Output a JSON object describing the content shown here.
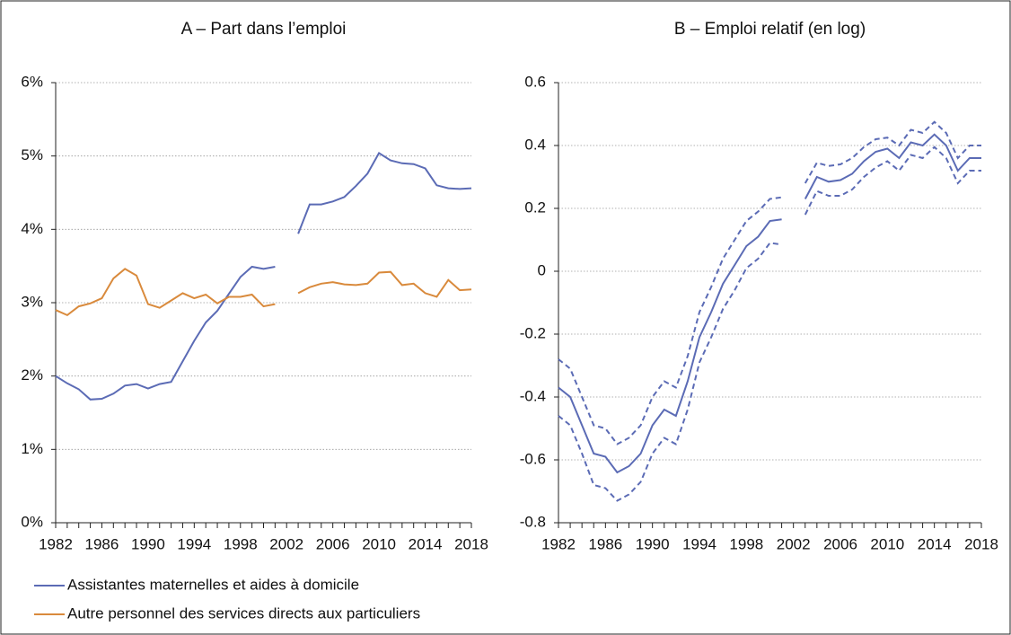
{
  "chart_data": [
    {
      "type": "line",
      "title": "A – Part dans l’emploi",
      "x": [
        1982,
        1983,
        1984,
        1985,
        1986,
        1987,
        1988,
        1989,
        1990,
        1991,
        1992,
        1993,
        1994,
        1995,
        1996,
        1997,
        1998,
        1999,
        2000,
        2001,
        2002,
        2003,
        2004,
        2005,
        2006,
        2007,
        2008,
        2009,
        2010,
        2011,
        2012,
        2013,
        2014,
        2015,
        2016,
        2017,
        2018
      ],
      "xlim": [
        1982,
        2018
      ],
      "xticks": [
        1982,
        1986,
        1990,
        1994,
        1998,
        2002,
        2006,
        2010,
        2014,
        2018
      ],
      "ylim": [
        0,
        6
      ],
      "yticks": [
        {
          "value": 0,
          "label": "0%"
        },
        {
          "value": 1,
          "label": "1%"
        },
        {
          "value": 2,
          "label": "2%"
        },
        {
          "value": 3,
          "label": "3%"
        },
        {
          "value": 4,
          "label": "4%"
        },
        {
          "value": 5,
          "label": "5%"
        },
        {
          "value": 6,
          "label": "6%"
        }
      ],
      "grid": true,
      "legend": "below",
      "series": [
        {
          "name": "Assistantes maternelles et aides à domicile",
          "color": "#5b6bb5",
          "values": [
            2.0,
            1.9,
            1.82,
            1.68,
            1.69,
            1.76,
            1.87,
            1.89,
            1.83,
            1.89,
            1.92,
            2.2,
            2.48,
            2.73,
            2.89,
            3.12,
            3.35,
            3.49,
            3.46,
            3.49,
            null,
            3.94,
            4.34,
            4.34,
            4.38,
            4.44,
            4.59,
            4.76,
            5.04,
            4.94,
            4.9,
            4.89,
            4.83,
            4.6,
            4.56,
            4.55,
            4.56
          ]
        },
        {
          "name": "Autre personnel des services directs aux particuliers",
          "color": "#d98a3c",
          "values": [
            2.9,
            2.83,
            2.95,
            2.99,
            3.06,
            3.33,
            3.46,
            3.37,
            2.98,
            2.93,
            3.03,
            3.13,
            3.06,
            3.11,
            2.99,
            3.08,
            3.08,
            3.11,
            2.95,
            2.98,
            null,
            3.13,
            3.21,
            3.26,
            3.28,
            3.25,
            3.24,
            3.26,
            3.41,
            3.42,
            3.24,
            3.26,
            3.13,
            3.08,
            3.31,
            3.17,
            3.18
          ]
        }
      ]
    },
    {
      "type": "line",
      "title": "B –  Emploi relatif (en log)",
      "x": [
        1982,
        1983,
        1984,
        1985,
        1986,
        1987,
        1988,
        1989,
        1990,
        1991,
        1992,
        1993,
        1994,
        1995,
        1996,
        1997,
        1998,
        1999,
        2000,
        2001,
        2002,
        2003,
        2004,
        2005,
        2006,
        2007,
        2008,
        2009,
        2010,
        2011,
        2012,
        2013,
        2014,
        2015,
        2016,
        2017,
        2018
      ],
      "xlim": [
        1982,
        2018
      ],
      "xticks": [
        1982,
        1986,
        1990,
        1994,
        1998,
        2002,
        2006,
        2010,
        2014,
        2018
      ],
      "ylim": [
        -0.8,
        0.6
      ],
      "yticks": [
        -0.8,
        -0.6,
        -0.4,
        -0.2,
        0,
        0.2,
        0.4,
        0.6
      ],
      "grid": true,
      "series": [
        {
          "color": "#5b6bb5",
          "style": "dashed",
          "values": [
            -0.28,
            -0.31,
            -0.4,
            -0.49,
            -0.5,
            -0.55,
            -0.53,
            -0.49,
            -0.4,
            -0.35,
            -0.37,
            -0.27,
            -0.13,
            -0.05,
            0.04,
            0.1,
            0.16,
            0.19,
            0.23,
            0.235,
            null,
            0.28,
            0.345,
            0.335,
            0.34,
            0.36,
            0.395,
            0.42,
            0.425,
            0.4,
            0.45,
            0.44,
            0.475,
            0.44,
            0.36,
            0.4,
            0.4
          ]
        },
        {
          "color": "#5b6bb5",
          "style": "solid",
          "values": [
            -0.37,
            -0.4,
            -0.49,
            -0.58,
            -0.59,
            -0.64,
            -0.62,
            -0.58,
            -0.49,
            -0.44,
            -0.46,
            -0.35,
            -0.21,
            -0.13,
            -0.04,
            0.02,
            0.08,
            0.11,
            0.16,
            0.165,
            null,
            0.23,
            0.3,
            0.285,
            0.29,
            0.31,
            0.35,
            0.38,
            0.39,
            0.36,
            0.41,
            0.4,
            0.435,
            0.4,
            0.32,
            0.36,
            0.36
          ]
        },
        {
          "color": "#5b6bb5",
          "style": "dashed",
          "values": [
            -0.46,
            -0.49,
            -0.58,
            -0.68,
            -0.69,
            -0.73,
            -0.71,
            -0.67,
            -0.58,
            -0.53,
            -0.55,
            -0.44,
            -0.29,
            -0.21,
            -0.12,
            -0.06,
            0.01,
            0.04,
            0.09,
            0.085,
            null,
            0.18,
            0.255,
            0.24,
            0.24,
            0.26,
            0.3,
            0.33,
            0.35,
            0.32,
            0.37,
            0.36,
            0.395,
            0.36,
            0.28,
            0.32,
            0.32
          ]
        }
      ]
    }
  ]
}
